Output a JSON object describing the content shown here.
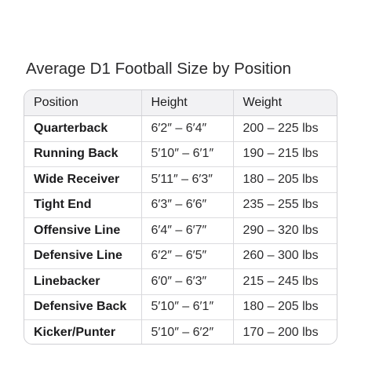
{
  "title": "Average D1 Football Size by Position",
  "table": {
    "headers": [
      "Position",
      "Height",
      "Weight"
    ],
    "rows": [
      [
        "Quarterback",
        "6′2″ – 6′4″",
        "200 – 225 lbs"
      ],
      [
        "Running Back",
        "5′10″ – 6′1″",
        "190 – 215 lbs"
      ],
      [
        "Wide Receiver",
        "5′11″ – 6′3″",
        "180 – 205 lbs"
      ],
      [
        "Tight End",
        "6′3″ – 6′6″",
        "235 – 255 lbs"
      ],
      [
        "Offensive Line",
        "6′4″ – 6′7″",
        "290 – 320 lbs"
      ],
      [
        "Defensive Line",
        "6′2″ – 6′5″",
        "260 – 300 lbs"
      ],
      [
        "Linebacker",
        "6′0″ – 6′3″",
        "215 – 245 lbs"
      ],
      [
        "Defensive Back",
        "5′10″ – 6′1″",
        "180 – 205 lbs"
      ],
      [
        "Kicker/Punter",
        "5′10″ – 6′2″",
        "170 – 200 lbs"
      ]
    ]
  },
  "colors": {
    "header_background": "#f2f2f4",
    "border": "#cfcfd3",
    "text": "#1c1c1e"
  }
}
